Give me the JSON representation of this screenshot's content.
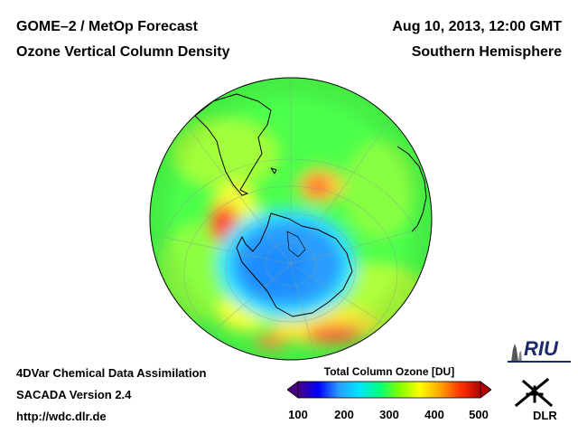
{
  "header": {
    "title_left_1": "GOME–2 / MetOp Forecast",
    "title_left_2": "Ozone Vertical Column Density",
    "title_right_1": "Aug 10, 2013, 12:00 GMT",
    "title_right_2": "Southern Hemisphere"
  },
  "footer": {
    "line1": "4DVar Chemical Data Assimilation",
    "line2": "SACADA Version 2.4",
    "line3": "http://wdc.dlr.de"
  },
  "colorbar": {
    "title": "Total Column Ozone [DU]",
    "ticks": [
      "100",
      "200",
      "300",
      "400",
      "500"
    ],
    "min": 100,
    "max": 500,
    "colors": [
      "#4b0082",
      "#0000ff",
      "#2a9bff",
      "#00e5ff",
      "#00ff7f",
      "#7fff00",
      "#ffff00",
      "#ffa500",
      "#ff3300",
      "#b30000"
    ]
  },
  "logos": {
    "riu_text": "RIU",
    "dlr_text": "DLR"
  },
  "map": {
    "projection": "orthographic, southern hemisphere",
    "field_colors": {
      "background": "#4cff4c",
      "low_ozone_center": "#2a9bff",
      "ring_cyan": "#33e6ff",
      "high_yellow": "#f0ff3a",
      "high_orange": "#ff9a2a",
      "high_red": "#ff4030"
    }
  }
}
